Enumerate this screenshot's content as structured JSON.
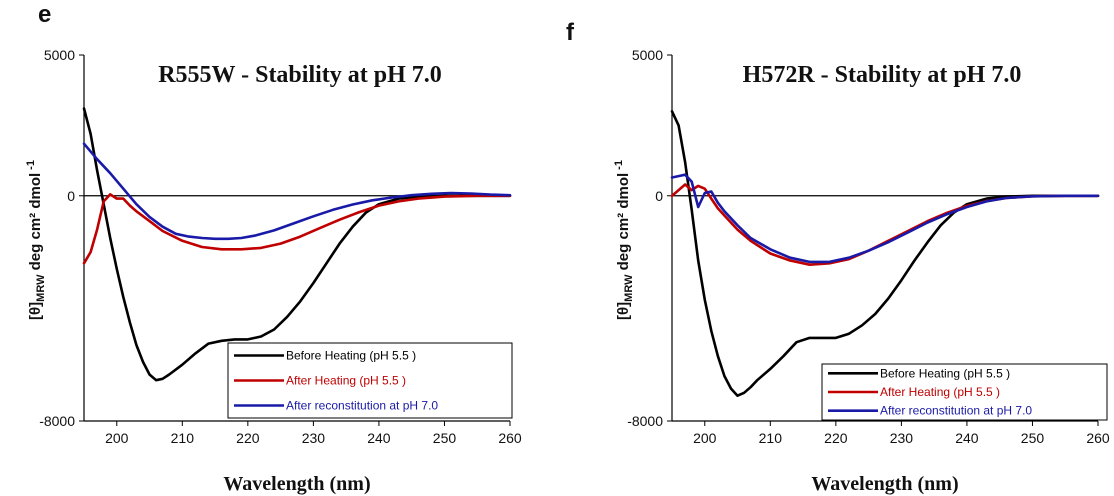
{
  "chart_data": [
    {
      "panel": "e",
      "type": "line",
      "title": "R555W - Stability at pH 7.0",
      "xlabel": "Wavelength (nm)",
      "ylabel_main": "[θ]",
      "ylabel_sub": "MRW",
      "ylabel_rest": " deg cm² dmol",
      "ylabel_sup": "-1",
      "xlim": [
        195,
        260
      ],
      "ylim": [
        -8000,
        5000
      ],
      "xticks": [
        200,
        210,
        220,
        230,
        240,
        250,
        260
      ],
      "yticks": [
        {
          "value": 5000,
          "label": "5000"
        },
        {
          "value": 0,
          "label": "0"
        },
        {
          "value": -8000,
          "label": "-8000"
        }
      ],
      "series": [
        {
          "name": "Before Heating (pH 5.5 )",
          "color": "#000000",
          "x": [
            195,
            196,
            197,
            198,
            199,
            200,
            201,
            202,
            203,
            204,
            205,
            206,
            207,
            208,
            210,
            212,
            214,
            216,
            218,
            220,
            222,
            224,
            226,
            228,
            230,
            232,
            234,
            236,
            238,
            240,
            243,
            246,
            250,
            255,
            260
          ],
          "y": [
            3100,
            2200,
            900,
            -300,
            -1500,
            -2600,
            -3600,
            -4500,
            -5300,
            -5900,
            -6350,
            -6550,
            -6500,
            -6350,
            -6000,
            -5600,
            -5250,
            -5150,
            -5100,
            -5100,
            -5000,
            -4750,
            -4300,
            -3750,
            -3100,
            -2400,
            -1700,
            -1100,
            -600,
            -300,
            -100,
            -30,
            0,
            0,
            0
          ]
        },
        {
          "name": "After Heating (pH 5.5 )",
          "color": "#c00000",
          "x": [
            195,
            196,
            197,
            198,
            199,
            200,
            201,
            202,
            203,
            205,
            207,
            210,
            213,
            216,
            219,
            222,
            225,
            228,
            231,
            234,
            237,
            240,
            243,
            246,
            250,
            255,
            260
          ],
          "y": [
            -2400,
            -2000,
            -1200,
            -200,
            50,
            -100,
            -100,
            -350,
            -550,
            -900,
            -1250,
            -1600,
            -1820,
            -1900,
            -1900,
            -1850,
            -1700,
            -1450,
            -1150,
            -850,
            -580,
            -350,
            -200,
            -100,
            -30,
            0,
            0
          ]
        },
        {
          "name": "After reconstitution at pH 7.0",
          "color": "#1a1aa8",
          "x": [
            195,
            197,
            199,
            201,
            203,
            205,
            207,
            209,
            211,
            213,
            215,
            217,
            219,
            221,
            224,
            227,
            230,
            233,
            236,
            239,
            242,
            245,
            248,
            251,
            254,
            257,
            260
          ],
          "y": [
            1850,
            1300,
            800,
            250,
            -300,
            -750,
            -1100,
            -1350,
            -1450,
            -1500,
            -1530,
            -1530,
            -1500,
            -1420,
            -1230,
            -980,
            -730,
            -500,
            -310,
            -160,
            -60,
            20,
            70,
            100,
            80,
            40,
            20
          ]
        }
      ]
    },
    {
      "panel": "f",
      "type": "line",
      "title": "H572R - Stability at pH 7.0",
      "xlabel": "Wavelength (nm)",
      "ylabel_main": "[θ]",
      "ylabel_sub": "MRW",
      "ylabel_rest": " deg cm² dmol",
      "ylabel_sup": "-1",
      "xlim": [
        195,
        260
      ],
      "ylim": [
        -8000,
        5000
      ],
      "xticks": [
        200,
        210,
        220,
        230,
        240,
        250,
        260
      ],
      "yticks": [
        {
          "value": 5000,
          "label": "5000"
        },
        {
          "value": 0,
          "label": "0"
        },
        {
          "value": -8000,
          "label": "-8000"
        }
      ],
      "series": [
        {
          "name": "Before Heating (pH 5.5 )",
          "color": "#000000",
          "x": [
            195,
            196,
            197,
            198,
            199,
            200,
            201,
            202,
            203,
            204,
            205,
            206,
            207,
            208,
            210,
            212,
            214,
            216,
            218,
            220,
            222,
            224,
            226,
            228,
            230,
            232,
            234,
            236,
            238,
            240,
            243,
            246,
            250,
            255,
            260
          ],
          "y": [
            3000,
            2500,
            1200,
            -500,
            -2300,
            -3700,
            -4800,
            -5700,
            -6400,
            -6850,
            -7100,
            -7000,
            -6800,
            -6550,
            -6150,
            -5700,
            -5200,
            -5050,
            -5050,
            -5050,
            -4900,
            -4600,
            -4200,
            -3650,
            -3000,
            -2300,
            -1650,
            -1050,
            -600,
            -300,
            -100,
            -30,
            0,
            0,
            0
          ]
        },
        {
          "name": "After Heating (pH 5.5 )",
          "color": "#c00000",
          "x": [
            195,
            196,
            197,
            198,
            199,
            200,
            201,
            202,
            203,
            205,
            207,
            210,
            213,
            216,
            219,
            222,
            225,
            228,
            231,
            234,
            237,
            240,
            243,
            246,
            250,
            255,
            260
          ],
          "y": [
            0,
            200,
            400,
            200,
            350,
            250,
            -100,
            -450,
            -700,
            -1200,
            -1600,
            -2050,
            -2300,
            -2450,
            -2400,
            -2250,
            -1950,
            -1600,
            -1250,
            -900,
            -600,
            -360,
            -190,
            -80,
            -20,
            0,
            0
          ]
        },
        {
          "name": "After reconstitution at pH 7.0",
          "color": "#1a1aa8",
          "x": [
            195,
            196,
            197,
            198,
            199,
            200,
            201,
            202,
            203,
            205,
            207,
            210,
            213,
            216,
            219,
            222,
            225,
            228,
            231,
            234,
            237,
            240,
            243,
            246,
            250,
            255,
            260
          ],
          "y": [
            650,
            700,
            750,
            500,
            -400,
            100,
            150,
            -250,
            -550,
            -1050,
            -1500,
            -1900,
            -2200,
            -2350,
            -2350,
            -2200,
            -1950,
            -1650,
            -1300,
            -950,
            -650,
            -400,
            -200,
            -80,
            -20,
            0,
            0
          ]
        }
      ]
    }
  ]
}
